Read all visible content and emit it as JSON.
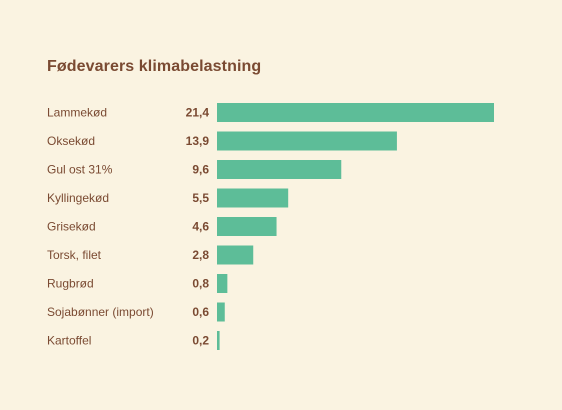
{
  "chart_data": {
    "type": "bar",
    "orientation": "horizontal",
    "title": "Fødevarers klimabelastning",
    "categories": [
      "Lammekød",
      "Oksekød",
      "Gul ost 31%",
      "Kyllingekød",
      "Grisekød",
      "Torsk, filet",
      "Rugbrød",
      "Sojabønner (import)",
      "Kartoffel"
    ],
    "values": [
      21.4,
      13.9,
      9.6,
      5.5,
      4.6,
      2.8,
      0.8,
      0.6,
      0.2
    ],
    "value_labels": [
      "21,4",
      "13,9",
      "9,6",
      "5,5",
      "4,6",
      "2,8",
      "0,8",
      "0,6",
      "0,2"
    ],
    "xlim": [
      0,
      21.4
    ],
    "grid": false,
    "legend": "none",
    "bar_color": "#5dbd98",
    "background_color": "#faf3e1",
    "text_color": "#7a4a32"
  }
}
